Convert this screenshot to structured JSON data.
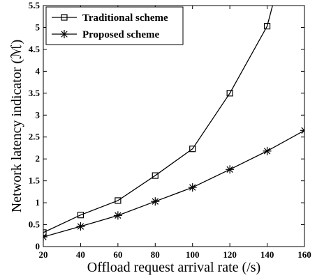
{
  "chart_data": {
    "type": "line",
    "xlabel": "Offload request arrival rate (/s)",
    "ylabel": "Network latency indicator (ℳ)",
    "xlim": [
      20,
      160
    ],
    "ylim": [
      0,
      5.5
    ],
    "xticks": [
      20,
      40,
      60,
      80,
      100,
      120,
      140,
      160
    ],
    "yticks": [
      0,
      0.5,
      1,
      1.5,
      2,
      2.5,
      3,
      3.5,
      4,
      4.5,
      5,
      5.5
    ],
    "x": [
      20,
      40,
      60,
      80,
      100,
      120,
      140
    ],
    "grid": false,
    "legend_position": "top-left",
    "series": [
      {
        "name": "Traditional scheme",
        "marker": "square",
        "x": [
          20,
          40,
          60,
          80,
          100,
          120,
          140,
          143.5
        ],
        "values": [
          0.32,
          0.72,
          1.05,
          1.62,
          2.23,
          3.5,
          5.03,
          5.6
        ]
      },
      {
        "name": "Proposed scheme",
        "marker": "asterisk",
        "x": [
          20,
          40,
          60,
          80,
          100,
          120,
          140,
          160
        ],
        "values": [
          0.22,
          0.46,
          0.71,
          1.03,
          1.35,
          1.76,
          2.18,
          2.65
        ]
      }
    ]
  }
}
